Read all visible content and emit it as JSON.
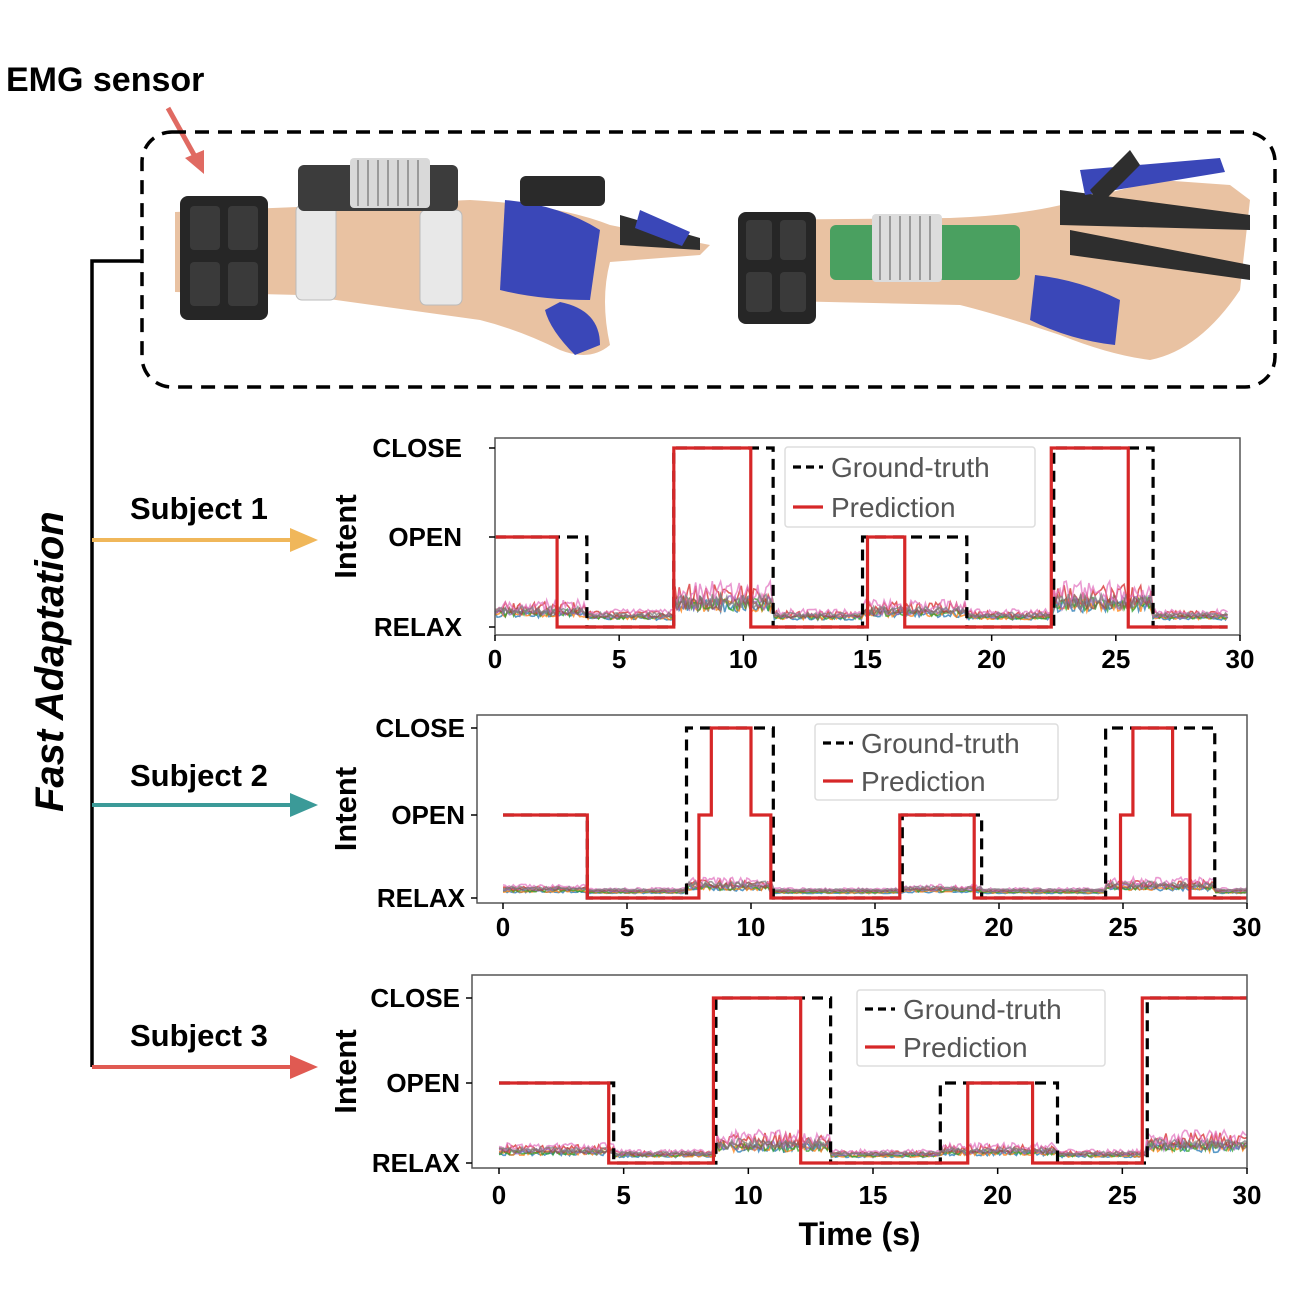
{
  "figure": {
    "sensor_label": "EMG sensor",
    "side_label": "Fast Adaptation",
    "subjects": [
      {
        "label": "Subject 1",
        "arrow_color": "#f0b75a"
      },
      {
        "label": "Subject 2",
        "arrow_color": "#3b9a98"
      },
      {
        "label": "Subject 3",
        "arrow_color": "#e05a52"
      }
    ],
    "photo_labels": [
      "hand-exoskeleton-photo-closed",
      "hand-exoskeleton-photo-open"
    ]
  },
  "colors": {
    "ground_truth": "#000000",
    "prediction": "#d62728",
    "emg_channels": [
      "#1f77b4",
      "#ff7f0e",
      "#2ca02c",
      "#d62728",
      "#9467bd",
      "#8c564b",
      "#e377c2",
      "#7f7f7f"
    ]
  },
  "chart_data": [
    {
      "type": "line",
      "subject": "Subject 1",
      "ylabel": "Intent",
      "xlabel": "",
      "yticks": [
        "RELAX",
        "OPEN",
        "CLOSE"
      ],
      "xticks": [
        0,
        5,
        10,
        15,
        20,
        25,
        30
      ],
      "xlim": [
        0,
        30
      ],
      "legend": {
        "position": "top-right",
        "entries": [
          "Ground-truth",
          "Prediction"
        ]
      },
      "series": [
        {
          "name": "Ground-truth",
          "style": "dashed",
          "steps": [
            [
              0,
              "OPEN"
            ],
            [
              3.7,
              "RELAX"
            ],
            [
              7.2,
              "CLOSE"
            ],
            [
              11.2,
              "RELAX"
            ],
            [
              14.8,
              "OPEN"
            ],
            [
              19.0,
              "RELAX"
            ],
            [
              22.5,
              "CLOSE"
            ],
            [
              26.5,
              "RELAX"
            ]
          ],
          "end": 29.5
        },
        {
          "name": "Prediction",
          "style": "solid",
          "steps": [
            [
              0,
              "OPEN"
            ],
            [
              2.5,
              "RELAX"
            ],
            [
              7.2,
              "CLOSE"
            ],
            [
              10.3,
              "RELAX"
            ],
            [
              15.0,
              "OPEN"
            ],
            [
              16.5,
              "RELAX"
            ],
            [
              22.4,
              "CLOSE"
            ],
            [
              25.5,
              "RELAX"
            ]
          ],
          "end": 29.5
        }
      ]
    },
    {
      "type": "line",
      "subject": "Subject 2",
      "ylabel": "Intent",
      "xlabel": "",
      "yticks": [
        "RELAX",
        "OPEN",
        "CLOSE"
      ],
      "xticks": [
        0,
        5,
        10,
        15,
        20,
        25,
        30
      ],
      "xlim": [
        0,
        30
      ],
      "legend": {
        "position": "top-right",
        "entries": [
          "Ground-truth",
          "Prediction"
        ]
      },
      "series": [
        {
          "name": "Ground-truth",
          "style": "dashed",
          "steps": [
            [
              0,
              "OPEN"
            ],
            [
              3.4,
              "RELAX"
            ],
            [
              7.4,
              "CLOSE"
            ],
            [
              10.9,
              "RELAX"
            ],
            [
              16.1,
              "OPEN"
            ],
            [
              19.3,
              "RELAX"
            ],
            [
              24.3,
              "CLOSE"
            ],
            [
              28.7,
              "RELAX"
            ]
          ],
          "end": 30
        },
        {
          "name": "Prediction",
          "style": "solid",
          "steps": [
            [
              0,
              "OPEN"
            ],
            [
              3.4,
              "RELAX"
            ],
            [
              7.9,
              "OPEN"
            ],
            [
              8.4,
              "CLOSE"
            ],
            [
              10.0,
              "OPEN"
            ],
            [
              10.8,
              "RELAX"
            ],
            [
              16.0,
              "OPEN"
            ],
            [
              19.0,
              "RELAX"
            ],
            [
              24.9,
              "OPEN"
            ],
            [
              25.4,
              "CLOSE"
            ],
            [
              27.0,
              "OPEN"
            ],
            [
              27.7,
              "RELAX"
            ]
          ],
          "end": 30
        }
      ]
    },
    {
      "type": "line",
      "subject": "Subject 3",
      "ylabel": "Intent",
      "xlabel": "Time (s)",
      "yticks": [
        "RELAX",
        "OPEN",
        "CLOSE"
      ],
      "xticks": [
        0,
        5,
        10,
        15,
        20,
        25,
        30
      ],
      "xlim": [
        0,
        30
      ],
      "legend": {
        "position": "top-right",
        "entries": [
          "Ground-truth",
          "Prediction"
        ]
      },
      "series": [
        {
          "name": "Ground-truth",
          "style": "dashed",
          "steps": [
            [
              0,
              "OPEN"
            ],
            [
              4.6,
              "RELAX"
            ],
            [
              8.7,
              "CLOSE"
            ],
            [
              13.3,
              "RELAX"
            ],
            [
              17.7,
              "OPEN"
            ],
            [
              22.4,
              "RELAX"
            ],
            [
              26.0,
              "CLOSE"
            ]
          ],
          "end": 30
        },
        {
          "name": "Prediction",
          "style": "solid",
          "steps": [
            [
              0,
              "OPEN"
            ],
            [
              4.4,
              "RELAX"
            ],
            [
              8.6,
              "CLOSE"
            ],
            [
              12.1,
              "RELAX"
            ],
            [
              18.8,
              "OPEN"
            ],
            [
              21.4,
              "RELAX"
            ],
            [
              25.8,
              "CLOSE"
            ]
          ],
          "end": 30
        }
      ]
    }
  ]
}
